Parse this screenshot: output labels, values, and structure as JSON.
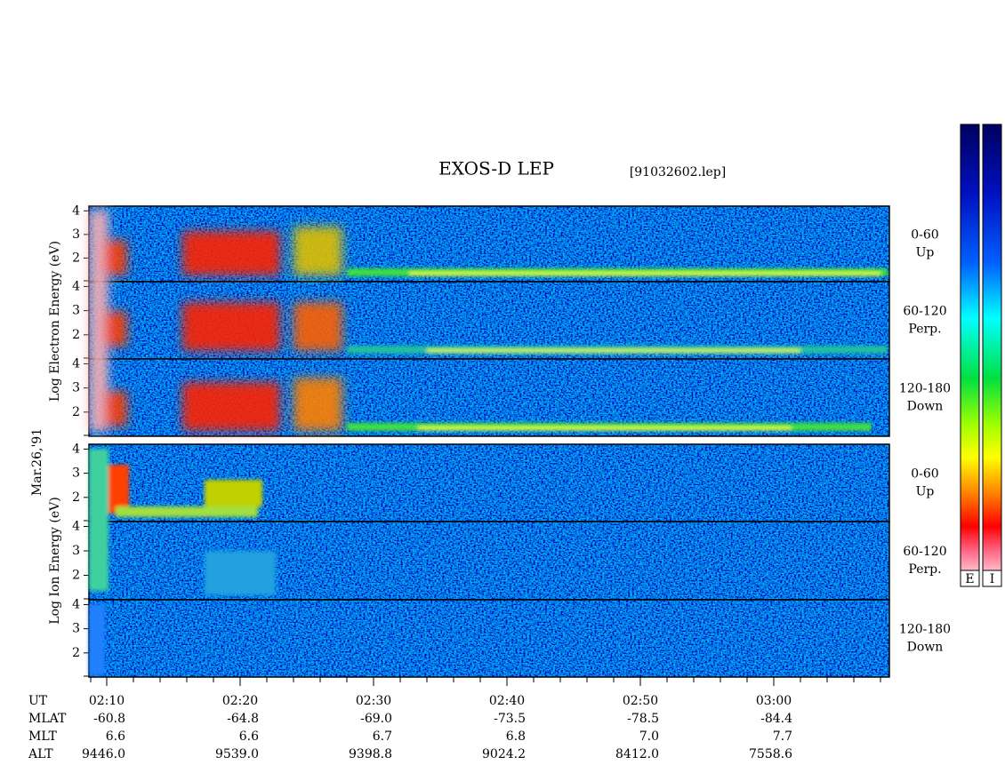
{
  "header": {
    "title": "EXOS-D LEP",
    "file": "[91032602.lep]",
    "date": "Mar.26,'91"
  },
  "groups": [
    {
      "label": "Log Electron Energy (eV)",
      "ylim": [
        1,
        4.2
      ],
      "yticks": [
        2,
        3,
        4
      ],
      "panels": [
        {
          "range": "0-60",
          "direction": "Up"
        },
        {
          "range": "60-120",
          "direction": "Perp."
        },
        {
          "range": "120-180",
          "direction": "Down"
        }
      ]
    },
    {
      "label": "Log Ion Energy (eV)",
      "ylim": [
        1,
        4.2
      ],
      "yticks": [
        2,
        3,
        4
      ],
      "panels": [
        {
          "range": "0-60",
          "direction": "Up"
        },
        {
          "range": "60-120",
          "direction": "Perp."
        },
        {
          "range": "120-180",
          "direction": "Down"
        }
      ]
    }
  ],
  "axis_rows": [
    {
      "name": "UT",
      "values": [
        "02:10",
        "02:20",
        "02:30",
        "02:40",
        "02:50",
        "03:00"
      ]
    },
    {
      "name": "MLAT",
      "values": [
        "-60.8",
        "-64.8",
        "-69.0",
        "-73.5",
        "-78.5",
        "-84.4"
      ]
    },
    {
      "name": "MLT",
      "values": [
        "6.6",
        "6.6",
        "6.7",
        "6.8",
        "7.0",
        "7.7"
      ]
    },
    {
      "name": "ALT",
      "values": [
        "9446.0",
        "9539.0",
        "9398.8",
        "9024.2",
        "8412.0",
        "7558.6"
      ]
    }
  ],
  "colorbars": [
    "E",
    "I"
  ]
}
